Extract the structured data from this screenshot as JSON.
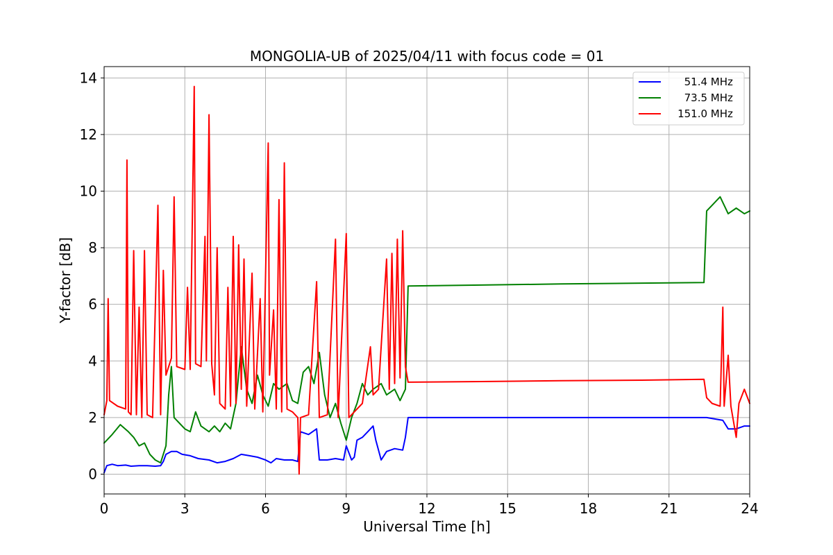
{
  "chart_data": {
    "type": "line",
    "title": "MONGOLIA-UB of 2025/04/11 with focus code = 01",
    "xlabel": "Universal Time [h]",
    "ylabel": "Y-factor [dB]",
    "xlim": [
      0,
      24
    ],
    "ylim": [
      -0.7,
      14.4
    ],
    "xticks": [
      0,
      3,
      6,
      9,
      12,
      15,
      18,
      21,
      24
    ],
    "xtick_labels": [
      "0",
      "3",
      "6",
      "9",
      "12",
      "15",
      "18",
      "21",
      "24"
    ],
    "yticks": [
      0,
      2,
      4,
      6,
      8,
      10,
      12,
      14
    ],
    "ytick_labels": [
      "0",
      "2",
      "4",
      "6",
      "8",
      "10",
      "12",
      "14"
    ],
    "grid": true,
    "legend_position": "top-right",
    "series": [
      {
        "name": "51.4 MHz",
        "legend_label": "  51.4 MHz",
        "color": "#0000ff",
        "points": [
          [
            0.0,
            0.05
          ],
          [
            0.1,
            0.3
          ],
          [
            0.3,
            0.35
          ],
          [
            0.5,
            0.3
          ],
          [
            0.8,
            0.32
          ],
          [
            1.0,
            0.28
          ],
          [
            1.3,
            0.3
          ],
          [
            1.6,
            0.3
          ],
          [
            1.9,
            0.28
          ],
          [
            2.1,
            0.3
          ],
          [
            2.2,
            0.45
          ],
          [
            2.3,
            0.7
          ],
          [
            2.5,
            0.8
          ],
          [
            2.7,
            0.8
          ],
          [
            2.9,
            0.7
          ],
          [
            3.2,
            0.65
          ],
          [
            3.5,
            0.55
          ],
          [
            3.9,
            0.5
          ],
          [
            4.2,
            0.4
          ],
          [
            4.5,
            0.45
          ],
          [
            4.8,
            0.55
          ],
          [
            5.1,
            0.7
          ],
          [
            5.4,
            0.65
          ],
          [
            5.7,
            0.6
          ],
          [
            6.0,
            0.5
          ],
          [
            6.2,
            0.4
          ],
          [
            6.4,
            0.55
          ],
          [
            6.7,
            0.5
          ],
          [
            7.0,
            0.5
          ],
          [
            7.2,
            0.45
          ],
          [
            7.3,
            1.5
          ],
          [
            7.6,
            1.4
          ],
          [
            7.9,
            1.6
          ],
          [
            8.0,
            0.5
          ],
          [
            8.3,
            0.5
          ],
          [
            8.6,
            0.55
          ],
          [
            8.9,
            0.5
          ],
          [
            9.0,
            1.0
          ],
          [
            9.2,
            0.5
          ],
          [
            9.3,
            0.6
          ],
          [
            9.4,
            1.2
          ],
          [
            9.6,
            1.3
          ],
          [
            9.8,
            1.5
          ],
          [
            10.0,
            1.7
          ],
          [
            10.1,
            1.2
          ],
          [
            10.3,
            0.5
          ],
          [
            10.5,
            0.8
          ],
          [
            10.8,
            0.9
          ],
          [
            11.1,
            0.85
          ],
          [
            11.2,
            1.3
          ],
          [
            11.3,
            2.0
          ],
          [
            14.0,
            2.0
          ],
          [
            17.0,
            2.0
          ],
          [
            20.0,
            2.0
          ],
          [
            22.3,
            2.0
          ],
          [
            22.4,
            2.0
          ],
          [
            22.7,
            1.95
          ],
          [
            23.0,
            1.9
          ],
          [
            23.2,
            1.6
          ],
          [
            23.5,
            1.6
          ],
          [
            23.8,
            1.7
          ],
          [
            24.0,
            1.7
          ]
        ]
      },
      {
        "name": "73.5 MHz",
        "legend_label": "  73.5 MHz",
        "color": "#008000",
        "points": [
          [
            0.0,
            1.1
          ],
          [
            0.3,
            1.4
          ],
          [
            0.6,
            1.75
          ],
          [
            0.9,
            1.5
          ],
          [
            1.1,
            1.3
          ],
          [
            1.3,
            1.0
          ],
          [
            1.5,
            1.1
          ],
          [
            1.7,
            0.7
          ],
          [
            1.9,
            0.5
          ],
          [
            2.1,
            0.4
          ],
          [
            2.3,
            1.0
          ],
          [
            2.4,
            2.8
          ],
          [
            2.5,
            3.8
          ],
          [
            2.6,
            2.0
          ],
          [
            2.8,
            1.8
          ],
          [
            3.0,
            1.6
          ],
          [
            3.2,
            1.5
          ],
          [
            3.4,
            2.2
          ],
          [
            3.6,
            1.7
          ],
          [
            3.9,
            1.5
          ],
          [
            4.1,
            1.7
          ],
          [
            4.3,
            1.5
          ],
          [
            4.5,
            1.8
          ],
          [
            4.7,
            1.6
          ],
          [
            4.9,
            2.5
          ],
          [
            5.1,
            4.5
          ],
          [
            5.3,
            3.0
          ],
          [
            5.5,
            2.5
          ],
          [
            5.7,
            3.5
          ],
          [
            5.9,
            2.8
          ],
          [
            6.1,
            2.4
          ],
          [
            6.3,
            3.2
          ],
          [
            6.5,
            3.0
          ],
          [
            6.8,
            3.2
          ],
          [
            7.0,
            2.6
          ],
          [
            7.2,
            2.5
          ],
          [
            7.4,
            3.6
          ],
          [
            7.6,
            3.8
          ],
          [
            7.8,
            3.2
          ],
          [
            8.0,
            4.3
          ],
          [
            8.2,
            2.8
          ],
          [
            8.4,
            2.0
          ],
          [
            8.6,
            2.5
          ],
          [
            8.8,
            1.8
          ],
          [
            9.0,
            1.2
          ],
          [
            9.2,
            2.0
          ],
          [
            9.4,
            2.5
          ],
          [
            9.6,
            3.2
          ],
          [
            9.8,
            2.8
          ],
          [
            10.0,
            3.0
          ],
          [
            10.3,
            3.2
          ],
          [
            10.5,
            2.8
          ],
          [
            10.8,
            3.0
          ],
          [
            11.0,
            2.6
          ],
          [
            11.2,
            3.0
          ],
          [
            11.3,
            6.65
          ],
          [
            14.0,
            6.68
          ],
          [
            17.0,
            6.72
          ],
          [
            20.0,
            6.75
          ],
          [
            22.3,
            6.77
          ],
          [
            22.4,
            9.3
          ],
          [
            22.6,
            9.5
          ],
          [
            22.9,
            9.8
          ],
          [
            23.2,
            9.2
          ],
          [
            23.5,
            9.4
          ],
          [
            23.8,
            9.2
          ],
          [
            24.0,
            9.3
          ]
        ]
      },
      {
        "name": "151.0 MHz",
        "legend_label": "151.0 MHz",
        "color": "#ff0000",
        "points": [
          [
            0.0,
            2.1
          ],
          [
            0.1,
            2.6
          ],
          [
            0.15,
            6.2
          ],
          [
            0.2,
            2.6
          ],
          [
            0.5,
            2.4
          ],
          [
            0.8,
            2.3
          ],
          [
            0.85,
            11.1
          ],
          [
            0.9,
            2.2
          ],
          [
            1.0,
            2.1
          ],
          [
            1.1,
            7.9
          ],
          [
            1.2,
            2.1
          ],
          [
            1.3,
            5.9
          ],
          [
            1.4,
            2.0
          ],
          [
            1.5,
            7.9
          ],
          [
            1.6,
            2.1
          ],
          [
            1.8,
            2.0
          ],
          [
            2.0,
            9.5
          ],
          [
            2.1,
            2.1
          ],
          [
            2.2,
            7.2
          ],
          [
            2.3,
            3.5
          ],
          [
            2.5,
            4.1
          ],
          [
            2.6,
            9.8
          ],
          [
            2.7,
            3.8
          ],
          [
            3.0,
            3.7
          ],
          [
            3.1,
            6.6
          ],
          [
            3.2,
            3.7
          ],
          [
            3.35,
            13.7
          ],
          [
            3.4,
            3.9
          ],
          [
            3.6,
            3.8
          ],
          [
            3.75,
            8.4
          ],
          [
            3.8,
            4.0
          ],
          [
            3.9,
            12.7
          ],
          [
            4.0,
            3.9
          ],
          [
            4.1,
            2.8
          ],
          [
            4.2,
            8.0
          ],
          [
            4.3,
            2.5
          ],
          [
            4.5,
            2.3
          ],
          [
            4.6,
            6.6
          ],
          [
            4.7,
            2.4
          ],
          [
            4.8,
            8.4
          ],
          [
            4.9,
            2.5
          ],
          [
            5.0,
            8.1
          ],
          [
            5.1,
            3.0
          ],
          [
            5.2,
            7.6
          ],
          [
            5.3,
            2.4
          ],
          [
            5.5,
            7.1
          ],
          [
            5.6,
            2.3
          ],
          [
            5.8,
            6.2
          ],
          [
            5.9,
            2.2
          ],
          [
            6.1,
            11.7
          ],
          [
            6.15,
            3.5
          ],
          [
            6.3,
            5.8
          ],
          [
            6.4,
            2.3
          ],
          [
            6.5,
            9.7
          ],
          [
            6.6,
            2.2
          ],
          [
            6.7,
            11.0
          ],
          [
            6.8,
            2.3
          ],
          [
            7.0,
            2.2
          ],
          [
            7.2,
            2.0
          ],
          [
            7.25,
            0.0
          ],
          [
            7.3,
            2.0
          ],
          [
            7.6,
            2.1
          ],
          [
            7.9,
            6.8
          ],
          [
            8.0,
            2.0
          ],
          [
            8.3,
            2.1
          ],
          [
            8.6,
            8.3
          ],
          [
            8.7,
            2.0
          ],
          [
            9.0,
            8.5
          ],
          [
            9.1,
            2.0
          ],
          [
            9.3,
            2.2
          ],
          [
            9.6,
            2.5
          ],
          [
            9.9,
            4.5
          ],
          [
            10.0,
            2.8
          ],
          [
            10.2,
            3.0
          ],
          [
            10.5,
            7.6
          ],
          [
            10.6,
            3.0
          ],
          [
            10.7,
            7.8
          ],
          [
            10.8,
            3.2
          ],
          [
            10.9,
            8.3
          ],
          [
            11.0,
            3.4
          ],
          [
            11.1,
            8.6
          ],
          [
            11.2,
            3.8
          ],
          [
            11.3,
            3.25
          ],
          [
            14.0,
            3.27
          ],
          [
            17.0,
            3.3
          ],
          [
            20.0,
            3.32
          ],
          [
            22.3,
            3.35
          ],
          [
            22.4,
            2.7
          ],
          [
            22.6,
            2.5
          ],
          [
            22.9,
            2.4
          ],
          [
            23.0,
            5.9
          ],
          [
            23.05,
            2.4
          ],
          [
            23.2,
            4.2
          ],
          [
            23.3,
            2.4
          ],
          [
            23.5,
            1.3
          ],
          [
            23.6,
            2.5
          ],
          [
            23.8,
            3.0
          ],
          [
            24.0,
            2.5
          ]
        ]
      }
    ]
  }
}
